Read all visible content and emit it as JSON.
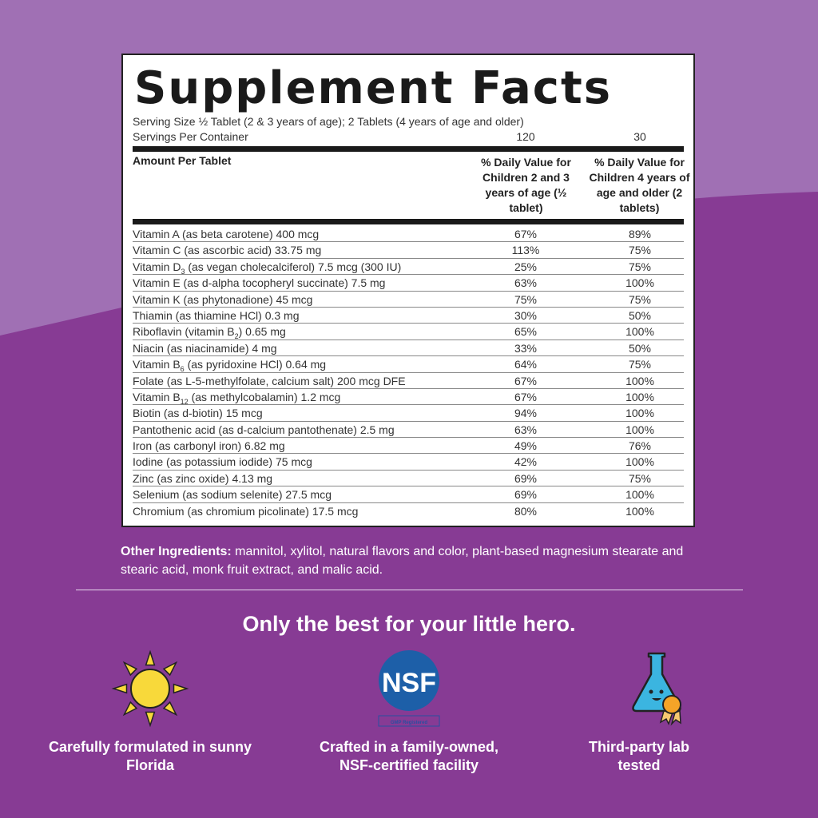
{
  "title": "Supplement Facts",
  "serving_size": "Serving Size ½ Tablet (2 & 3 years of age); 2 Tablets (4 years of age and older)",
  "servings_label": "Servings Per Container",
  "servings": [
    "120",
    "30"
  ],
  "header": {
    "amount": "Amount Per Tablet",
    "col1": "% Daily Value for Children 2 and 3 years of age (½ tablet)",
    "col2": "% Daily Value for Children 4 years of age and older (2 tablets)"
  },
  "rows": [
    {
      "pre": "Vitamin A (as beta carotene) 400 mcg",
      "sub": "",
      "post": "",
      "v1": "67%",
      "v2": "89%"
    },
    {
      "pre": "Vitamin C (as ascorbic acid) 33.75 mg",
      "sub": "",
      "post": "",
      "v1": "113%",
      "v2": "75%"
    },
    {
      "pre": "Vitamin D",
      "sub": "3",
      "post": " (as vegan cholecalciferol) 7.5 mcg (300 IU)",
      "v1": "25%",
      "v2": "75%"
    },
    {
      "pre": "Vitamin E (as d-alpha tocopheryl succinate) 7.5 mg",
      "sub": "",
      "post": "",
      "v1": "63%",
      "v2": "100%"
    },
    {
      "pre": "Vitamin K (as phytonadione) 45 mcg",
      "sub": "",
      "post": "",
      "v1": "75%",
      "v2": "75%"
    },
    {
      "pre": "Thiamin (as thiamine HCl) 0.3 mg",
      "sub": "",
      "post": "",
      "v1": "30%",
      "v2": "50%"
    },
    {
      "pre": "Riboflavin (vitamin B",
      "sub": "2",
      "post": ") 0.65 mg",
      "v1": "65%",
      "v2": "100%"
    },
    {
      "pre": "Niacin (as niacinamide) 4 mg",
      "sub": "",
      "post": "",
      "v1": "33%",
      "v2": "50%"
    },
    {
      "pre": "Vitamin B",
      "sub": "6",
      "post": " (as pyridoxine HCl) 0.64 mg",
      "v1": "64%",
      "v2": "75%"
    },
    {
      "pre": "Folate (as L-5-methylfolate, calcium salt) 200 mcg DFE",
      "sub": "",
      "post": "",
      "v1": "67%",
      "v2": "100%"
    },
    {
      "pre": "Vitamin B",
      "sub": "12",
      "post": " (as methylcobalamin) 1.2 mcg",
      "v1": "67%",
      "v2": "100%"
    },
    {
      "pre": "Biotin (as d-biotin) 15 mcg",
      "sub": "",
      "post": "",
      "v1": "94%",
      "v2": "100%"
    },
    {
      "pre": "Pantothenic acid (as d-calcium pantothenate) 2.5 mg",
      "sub": "",
      "post": "",
      "v1": "63%",
      "v2": "100%"
    },
    {
      "pre": "Iron (as carbonyl iron) 6.82 mg",
      "sub": "",
      "post": "",
      "v1": "49%",
      "v2": "76%"
    },
    {
      "pre": "Iodine (as potassium iodide) 75 mcg",
      "sub": "",
      "post": "",
      "v1": "42%",
      "v2": "100%"
    },
    {
      "pre": "Zinc (as zinc oxide) 4.13 mg",
      "sub": "",
      "post": "",
      "v1": "69%",
      "v2": "75%"
    },
    {
      "pre": "Selenium (as sodium selenite) 27.5 mcg",
      "sub": "",
      "post": "",
      "v1": "69%",
      "v2": "100%"
    },
    {
      "pre": "Chromium (as chromium picolinate) 17.5 mcg",
      "sub": "",
      "post": "",
      "v1": "80%",
      "v2": "100%"
    }
  ],
  "other_label": "Other Ingredients:",
  "other_text": " mannitol, xylitol, natural flavors and color, plant-based magnesium stearate and stearic acid, monk fruit extract, and malic acid.",
  "tagline": "Only the best for your little hero.",
  "features": [
    {
      "icon": "sun-icon",
      "text": "Carefully formulated in sunny Florida"
    },
    {
      "icon": "nsf-logo",
      "text": "Crafted in a family-owned, NSF-certified facility",
      "logo": "NSF",
      "badge": "GMP Registered"
    },
    {
      "icon": "flask-icon",
      "text": "Third-party lab tested"
    }
  ],
  "colors": {
    "bg_top": "#a070b4",
    "bg_bottom": "#873b94",
    "nsf": "#1d5fa8",
    "flask": "#3bb5e0",
    "ribbon": "#f4a428",
    "sun": "#f8d93a"
  }
}
